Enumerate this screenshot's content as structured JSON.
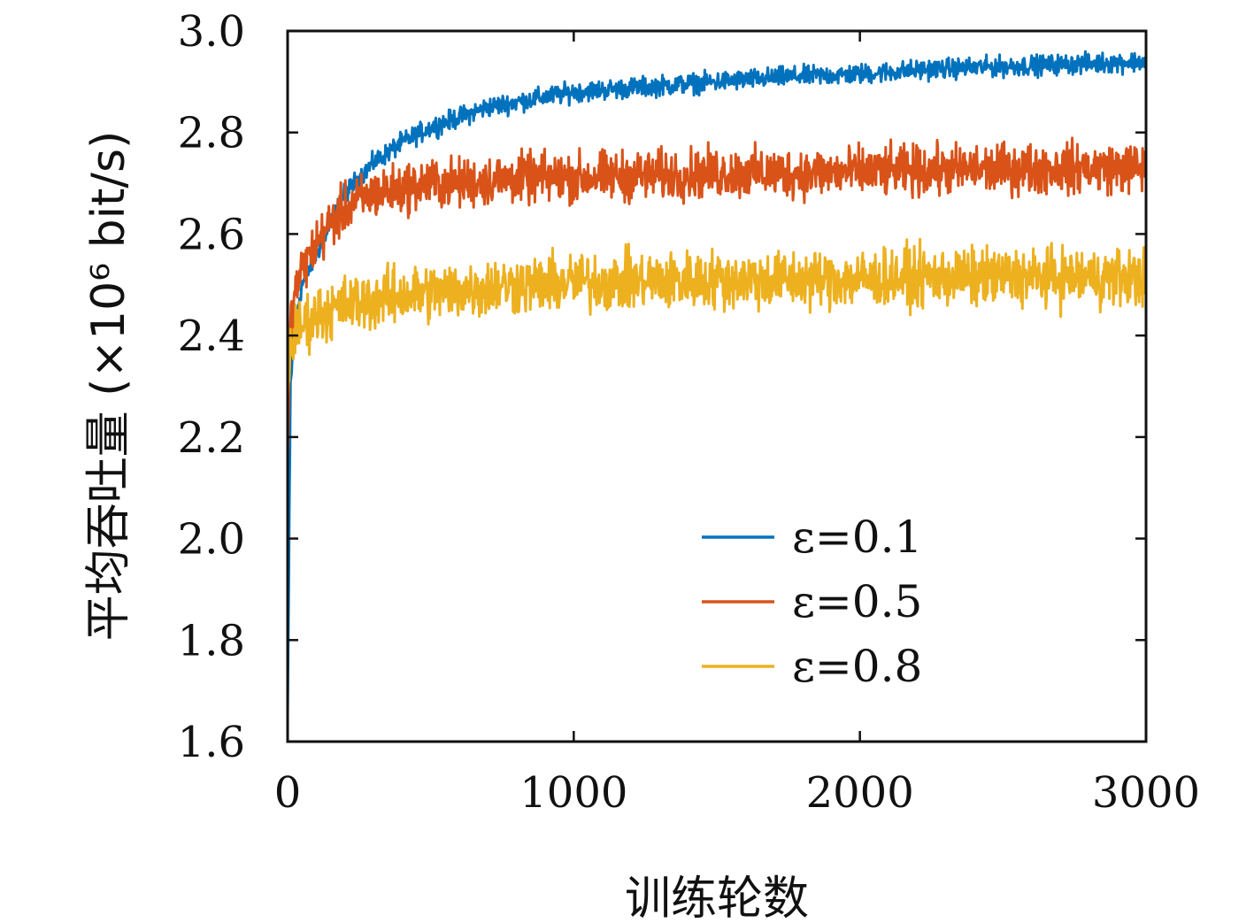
{
  "chart_data": {
    "type": "line",
    "xlabel": "训练轮数",
    "ylabel": "平均吞吐量 (×10⁶ bit/s)",
    "xlim": [
      0,
      3000
    ],
    "ylim": [
      1.6,
      3.0
    ],
    "xticks": [
      0,
      1000,
      2000,
      3000
    ],
    "xtick_labels": [
      "0",
      "1000",
      "2000",
      "3000"
    ],
    "yticks": [
      1.6,
      1.8,
      2.0,
      2.2,
      2.4,
      2.6,
      2.8,
      3.0
    ],
    "ytick_labels": [
      "1.6",
      "1.8",
      "2.0",
      "2.2",
      "2.4",
      "2.6",
      "2.8",
      "3.0"
    ],
    "grid": false,
    "legend_position": "lower-right",
    "x": [
      0,
      10,
      25,
      50,
      100,
      150,
      200,
      300,
      400,
      500,
      600,
      700,
      800,
      900,
      1000,
      1250,
      1500,
      1750,
      2000,
      2250,
      2500,
      2750,
      3000
    ],
    "series": [
      {
        "name": "ε=0.1",
        "color": "#0072BD",
        "noise": 0.012,
        "values": [
          1.65,
          2.3,
          2.42,
          2.5,
          2.56,
          2.62,
          2.68,
          2.74,
          2.78,
          2.81,
          2.83,
          2.85,
          2.86,
          2.87,
          2.88,
          2.89,
          2.9,
          2.91,
          2.915,
          2.925,
          2.93,
          2.935,
          2.94
        ]
      },
      {
        "name": "ε=0.5",
        "color": "#D95319",
        "noise": 0.03,
        "values": [
          2.15,
          2.42,
          2.48,
          2.53,
          2.58,
          2.62,
          2.65,
          2.68,
          2.69,
          2.7,
          2.7,
          2.705,
          2.71,
          2.71,
          2.712,
          2.715,
          2.72,
          2.72,
          2.722,
          2.725,
          2.728,
          2.73,
          2.73
        ]
      },
      {
        "name": "ε=0.8",
        "color": "#EDB120",
        "noise": 0.035,
        "values": [
          2.28,
          2.38,
          2.4,
          2.42,
          2.44,
          2.45,
          2.46,
          2.47,
          2.48,
          2.485,
          2.49,
          2.495,
          2.5,
          2.5,
          2.505,
          2.507,
          2.51,
          2.51,
          2.512,
          2.515,
          2.515,
          2.515,
          2.515
        ]
      }
    ]
  }
}
